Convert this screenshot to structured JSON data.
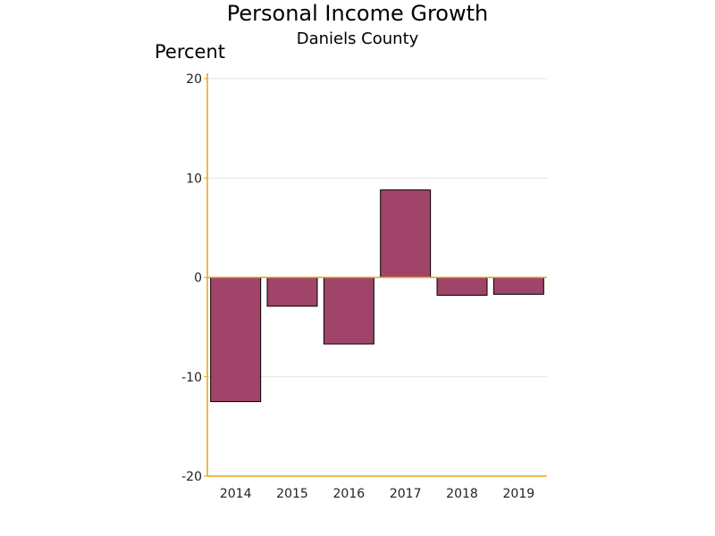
{
  "chart_data": {
    "type": "bar",
    "title": "Personal Income Growth",
    "subtitle": "Daniels County",
    "xlabel": "",
    "ylabel": "Percent",
    "categories": [
      "2014",
      "2015",
      "2016",
      "2017",
      "2018",
      "2019"
    ],
    "values": [
      -12.5,
      -2.9,
      -6.7,
      8.8,
      -1.8,
      -1.7
    ],
    "ylim": [
      -20,
      20
    ],
    "yticks": [
      20,
      10,
      0,
      -10,
      -20
    ],
    "grid": true,
    "legend": "none",
    "colors": {
      "bar": "#A0446A",
      "axis": "#E8A317",
      "grid": "#E4E4E4",
      "bar_outline": "#000000"
    }
  }
}
